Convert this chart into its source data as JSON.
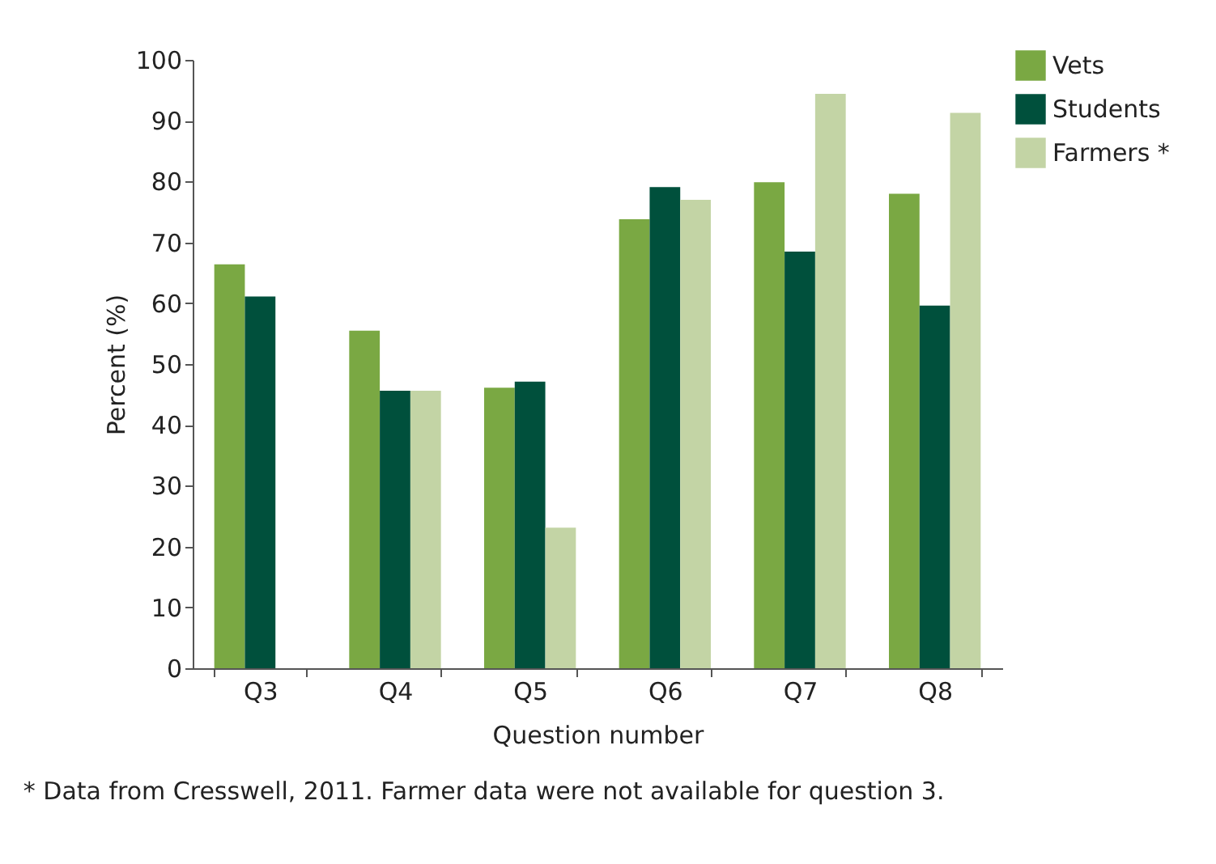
{
  "chart_data": {
    "type": "bar",
    "xlabel": "Question number",
    "ylabel": "Percent (%)",
    "categories": [
      "Q3",
      "Q4",
      "Q5",
      "Q6",
      "Q7",
      "Q8"
    ],
    "series": [
      {
        "name": "Vets",
        "color": "#7aa843",
        "values": [
          66.4,
          55.5,
          46.1,
          73.8,
          79.9,
          78.0
        ]
      },
      {
        "name": "Students",
        "color": "#00503c",
        "values": [
          61.1,
          45.6,
          47.1,
          79.1,
          68.5,
          59.6
        ]
      },
      {
        "name": "Farmers *",
        "color": "#c3d4a5",
        "values": [
          null,
          45.6,
          23.1,
          77.0,
          94.4,
          91.3
        ]
      }
    ],
    "ylim": [
      0,
      100
    ],
    "yticks": [
      0,
      10,
      20,
      30,
      40,
      50,
      60,
      70,
      80,
      90,
      100
    ],
    "grid": false,
    "legend": "top right",
    "annotations": [
      "* Data from Cresswell, 2011. Farmer data were not available for question 3."
    ]
  }
}
